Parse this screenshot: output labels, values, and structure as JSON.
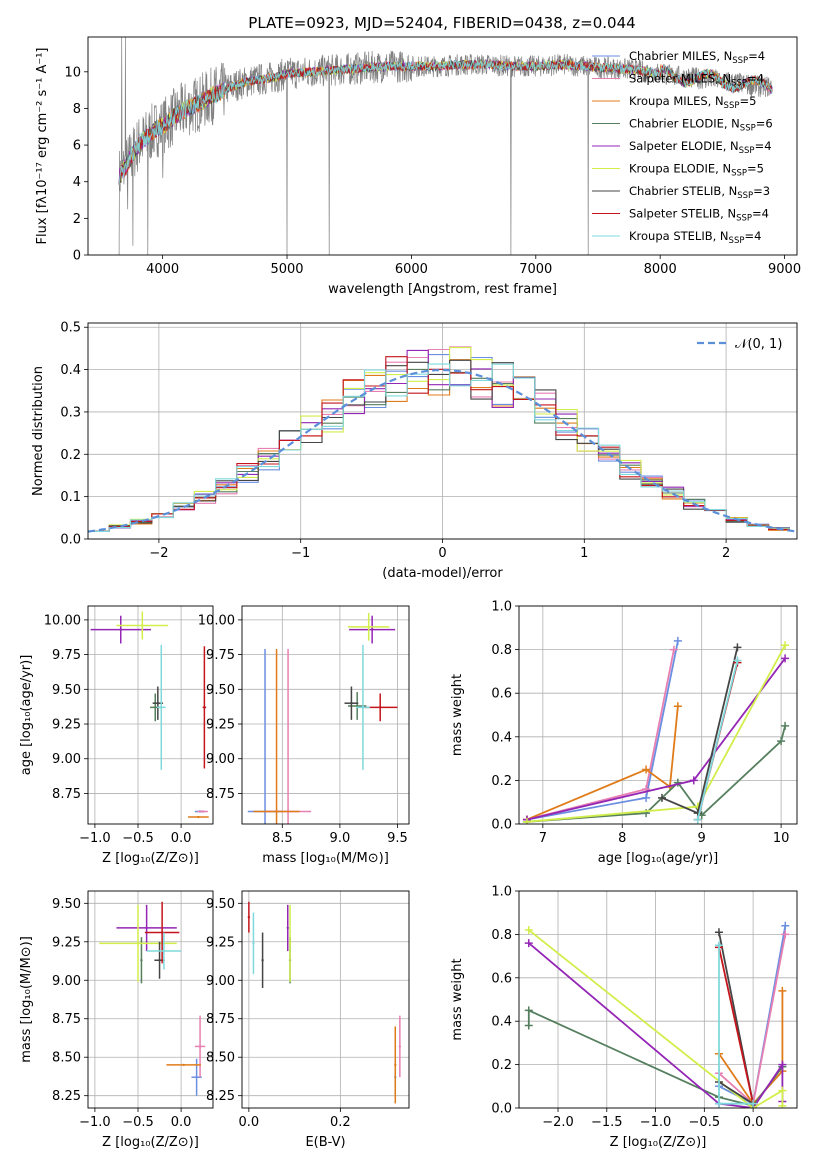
{
  "figure": {
    "title": "PLATE=0923, MJD=52404, FIBERID=0438, z=0.044"
  },
  "colors": {
    "Chabrier MILES": "#6b8fe0",
    "Salpeter MILES": "#e77fb3",
    "Kroupa MILES": "#e07b1a",
    "Chabrier ELODIE": "#557f5e",
    "Salpeter ELODIE": "#9426b5",
    "Kroupa ELODIE": "#d2ee4a",
    "Chabrier STELIB": "#454545",
    "Salpeter STELIB": "#c4151c",
    "Kroupa STELIB": "#7fd9dc",
    "data": "#808080",
    "normal": "#5b8fd9"
  },
  "chart_data": [
    {
      "id": "spectrum",
      "type": "line",
      "title": "PLATE=0923, MJD=52404, FIBERID=0438, z=0.044",
      "xlabel": "wavelength [Angstrom, rest frame]",
      "ylabel": "Flux [fλ10⁻¹⁷ erg cm⁻² s⁻¹ A⁻¹]",
      "xlim": [
        3400,
        9100
      ],
      "ylim": [
        0,
        11.9
      ],
      "xticks": [
        4000,
        5000,
        6000,
        7000,
        8000,
        9000
      ],
      "yticks": [
        0,
        2,
        4,
        6,
        8,
        10
      ],
      "legend": "upper right",
      "legend_entries": [
        {
          "label": "Chabrier MILES, N",
          "sub": "SSP",
          "tail": "=4",
          "color_key": "Chabrier MILES"
        },
        {
          "label": "Salpeter MILES, N",
          "sub": "SSP",
          "tail": "=4",
          "color_key": "Salpeter MILES"
        },
        {
          "label": "Kroupa MILES, N",
          "sub": "SSP",
          "tail": "=5",
          "color_key": "Kroupa MILES"
        },
        {
          "label": "Chabrier ELODIE, N",
          "sub": "SSP",
          "tail": "=6",
          "color_key": "Chabrier ELODIE"
        },
        {
          "label": "Salpeter ELODIE, N",
          "sub": "SSP",
          "tail": "=4",
          "color_key": "Salpeter ELODIE"
        },
        {
          "label": "Kroupa ELODIE, N",
          "sub": "SSP",
          "tail": "=5",
          "color_key": "Kroupa ELODIE"
        },
        {
          "label": "Chabrier STELIB, N",
          "sub": "SSP",
          "tail": "=3",
          "color_key": "Chabrier STELIB"
        },
        {
          "label": "Salpeter STELIB, N",
          "sub": "SSP",
          "tail": "=4",
          "color_key": "Salpeter STELIB"
        },
        {
          "label": "Kroupa STELIB, N",
          "sub": "SSP",
          "tail": "=4",
          "color_key": "Kroupa STELIB"
        }
      ],
      "continuum": [
        [
          3650,
          4.3
        ],
        [
          3700,
          4.8
        ],
        [
          3750,
          5.4
        ],
        [
          3800,
          6.0
        ],
        [
          3850,
          6.3
        ],
        [
          3900,
          6.6
        ],
        [
          3950,
          6.9
        ],
        [
          4000,
          7.0
        ],
        [
          4100,
          7.6
        ],
        [
          4200,
          8.0
        ],
        [
          4300,
          8.3
        ],
        [
          4400,
          8.7
        ],
        [
          4500,
          9.0
        ],
        [
          4600,
          9.3
        ],
        [
          4700,
          9.5
        ],
        [
          4800,
          9.6
        ],
        [
          4900,
          9.7
        ],
        [
          5000,
          9.9
        ],
        [
          5200,
          10.0
        ],
        [
          5400,
          10.1
        ],
        [
          5600,
          10.2
        ],
        [
          5800,
          10.3
        ],
        [
          6000,
          10.3
        ],
        [
          6200,
          10.3
        ],
        [
          6400,
          10.4
        ],
        [
          6600,
          10.4
        ],
        [
          6800,
          10.3
        ],
        [
          7000,
          10.3
        ],
        [
          7200,
          10.4
        ],
        [
          7400,
          10.3
        ],
        [
          7600,
          10.2
        ],
        [
          7800,
          10.1
        ],
        [
          8000,
          9.9
        ],
        [
          8200,
          9.7
        ],
        [
          8400,
          9.6
        ],
        [
          8600,
          9.4
        ],
        [
          8800,
          9.2
        ]
      ],
      "data_spikes": [
        [
          3650,
          0
        ],
        [
          3670,
          11.9
        ],
        [
          3700,
          11.9
        ],
        [
          3720,
          2.5
        ],
        [
          3760,
          0.5
        ],
        [
          3880,
          0
        ],
        [
          4000,
          4.2
        ],
        [
          5000,
          0
        ],
        [
          5340,
          0
        ],
        [
          6800,
          0
        ],
        [
          7420,
          0
        ]
      ]
    },
    {
      "id": "residuals",
      "type": "step",
      "xlabel": "(data-model)/error",
      "ylabel": "Normed distribution",
      "xlim": [
        -2.5,
        2.5
      ],
      "ylim": [
        0,
        0.51
      ],
      "xticks": [
        -2,
        -1,
        0,
        1,
        2
      ],
      "yticks": [
        0.0,
        0.1,
        0.2,
        0.3,
        0.4,
        0.5
      ],
      "legend": "upper right",
      "normal_label": "𝒩(0, 1)",
      "bins": [
        -2.5,
        -2.35,
        -2.2,
        -2.05,
        -1.9,
        -1.75,
        -1.6,
        -1.45,
        -1.3,
        -1.15,
        -1.0,
        -0.85,
        -0.7,
        -0.55,
        -0.4,
        -0.25,
        -0.1,
        0.05,
        0.2,
        0.35,
        0.5,
        0.65,
        0.8,
        0.95,
        1.1,
        1.25,
        1.4,
        1.55,
        1.7,
        1.85,
        2.0,
        2.15,
        2.3,
        2.45
      ]
    },
    {
      "id": "age_vs_Z",
      "type": "errorbar",
      "xlabel": "Z [log₁₀(Z/Z⊙)]",
      "ylabel": "age  [log₁₀(age/yr)]",
      "xlim": [
        -1.08,
        0.37
      ],
      "ylim": [
        8.53,
        10.1
      ],
      "xticks": [
        -1.0,
        -0.5,
        0.0
      ],
      "yticks": [
        8.75,
        9.0,
        9.25,
        9.5,
        9.75,
        10.0
      ],
      "points": [
        {
          "k": "Chabrier MILES",
          "x": 0.22,
          "y": 8.62,
          "xerr": 0.06,
          "yerr": 0.0
        },
        {
          "k": "Salpeter MILES",
          "x": 0.25,
          "y": 8.62,
          "xerr": 0.06,
          "yerr": 0.0
        },
        {
          "k": "Kroupa MILES",
          "x": 0.2,
          "y": 8.58,
          "xerr": 0.12,
          "yerr": 0.0
        },
        {
          "k": "Chabrier ELODIE",
          "x": -0.3,
          "y": 9.37,
          "xerr": 0.06,
          "yerr": 0.1
        },
        {
          "k": "Salpeter ELODIE",
          "x": -0.7,
          "y": 9.93,
          "xerr": 0.35,
          "yerr": 0.1
        },
        {
          "k": "Kroupa ELODIE",
          "x": -0.45,
          "y": 9.96,
          "xerr": 0.3,
          "yerr": 0.1
        },
        {
          "k": "Chabrier STELIB",
          "x": -0.27,
          "y": 9.4,
          "xerr": 0.06,
          "yerr": 0.12
        },
        {
          "k": "Salpeter STELIB",
          "x": 0.27,
          "y": 9.37,
          "xerr": 0.02,
          "yerr": 0.44
        },
        {
          "k": "Kroupa STELIB",
          "x": -0.23,
          "y": 9.37,
          "xerr": 0.05,
          "yerr": 0.45
        }
      ]
    },
    {
      "id": "age_vs_mass",
      "type": "errorbar",
      "xlabel": "mass [log₁₀(M/M⊙)]",
      "ylabel": "",
      "xlim": [
        8.15,
        9.6
      ],
      "ylim": [
        8.53,
        10.1
      ],
      "xticks": [
        8.5,
        9.0,
        9.5
      ],
      "yticks": [
        8.75,
        9.0,
        9.25,
        9.5,
        9.75,
        10.0
      ],
      "points": [
        {
          "k": "Chabrier MILES",
          "x": 8.35,
          "y": 8.62,
          "xerr": 0.15,
          "yerr": 1.17
        },
        {
          "k": "Salpeter MILES",
          "x": 8.55,
          "y": 8.62,
          "xerr": 0.2,
          "yerr": 1.17
        },
        {
          "k": "Kroupa MILES",
          "x": 8.45,
          "y": 8.62,
          "xerr": 0.2,
          "yerr": 1.17
        },
        {
          "k": "Chabrier ELODIE",
          "x": 9.15,
          "y": 9.38,
          "xerr": 0.08,
          "yerr": 0.1
        },
        {
          "k": "Salpeter ELODIE",
          "x": 9.28,
          "y": 9.93,
          "xerr": 0.2,
          "yerr": 0.1
        },
        {
          "k": "Kroupa ELODIE",
          "x": 9.25,
          "y": 9.95,
          "xerr": 0.18,
          "yerr": 0.1
        },
        {
          "k": "Chabrier STELIB",
          "x": 9.1,
          "y": 9.4,
          "xerr": 0.06,
          "yerr": 0.12
        },
        {
          "k": "Salpeter STELIB",
          "x": 9.35,
          "y": 9.37,
          "xerr": 0.15,
          "yerr": 0.1
        },
        {
          "k": "Kroupa STELIB",
          "x": 9.2,
          "y": 9.37,
          "xerr": 0.06,
          "yerr": 0.45
        }
      ]
    },
    {
      "id": "weight_vs_age",
      "type": "line",
      "xlabel": "age  [log₁₀(age/yr)]",
      "ylabel": "mass weight",
      "xlim": [
        6.7,
        10.2
      ],
      "ylim": [
        0.0,
        1.0
      ],
      "xticks": [
        7,
        8,
        9,
        10
      ],
      "yticks": [
        0.0,
        0.2,
        0.4,
        0.6,
        0.8,
        1.0
      ],
      "series": [
        {
          "k": "Chabrier MILES",
          "x": [
            6.8,
            8.3,
            8.7
          ],
          "y": [
            0.02,
            0.12,
            0.84
          ]
        },
        {
          "k": "Salpeter MILES",
          "x": [
            6.8,
            8.3,
            8.65
          ],
          "y": [
            0.02,
            0.16,
            0.8
          ]
        },
        {
          "k": "Kroupa MILES",
          "x": [
            6.8,
            8.3,
            8.6,
            8.7
          ],
          "y": [
            0.02,
            0.25,
            0.17,
            0.54
          ]
        },
        {
          "k": "Chabrier ELODIE",
          "x": [
            6.8,
            8.3,
            8.7,
            9.0,
            10.0,
            10.05
          ],
          "y": [
            0.01,
            0.05,
            0.19,
            0.04,
            0.38,
            0.45
          ]
        },
        {
          "k": "Salpeter ELODIE",
          "x": [
            6.8,
            8.9,
            10.05
          ],
          "y": [
            0.02,
            0.2,
            0.76
          ]
        },
        {
          "k": "Kroupa ELODIE",
          "x": [
            6.8,
            8.95,
            10.05
          ],
          "y": [
            0.01,
            0.08,
            0.82
          ]
        },
        {
          "k": "Chabrier STELIB",
          "x": [
            8.5,
            8.95,
            9.45
          ],
          "y": [
            0.12,
            0.05,
            0.81
          ]
        },
        {
          "k": "Salpeter STELIB",
          "x": [
            8.95,
            9.45
          ],
          "y": [
            0.02,
            0.74
          ]
        },
        {
          "k": "Kroupa STELIB",
          "x": [
            8.95,
            9.45
          ],
          "y": [
            0.02,
            0.75
          ]
        }
      ]
    },
    {
      "id": "mass_vs_Z",
      "type": "errorbar",
      "xlabel": "Z [log₁₀(Z/Z⊙)]",
      "ylabel": "mass [log₁₀(M/M⊙)]",
      "xlim": [
        -1.08,
        0.37
      ],
      "ylim": [
        8.17,
        9.58
      ],
      "xticks": [
        -1.0,
        -0.5,
        0.0
      ],
      "yticks": [
        8.25,
        8.5,
        8.75,
        9.0,
        9.25,
        9.5
      ],
      "points": [
        {
          "k": "Chabrier MILES",
          "x": 0.18,
          "y": 8.37,
          "xerr": 0.06,
          "yerr": 0.12
        },
        {
          "k": "Salpeter MILES",
          "x": 0.22,
          "y": 8.57,
          "xerr": 0.06,
          "yerr": 0.2
        },
        {
          "k": "Kroupa MILES",
          "x": 0.03,
          "y": 8.45,
          "xerr": 0.2,
          "yerr": 0.0
        },
        {
          "k": "Chabrier ELODIE",
          "x": -0.46,
          "y": 9.13,
          "xerr": 0.0,
          "yerr": 0.15
        },
        {
          "k": "Salpeter ELODIE",
          "x": -0.4,
          "y": 9.34,
          "xerr": 0.35,
          "yerr": 0.15
        },
        {
          "k": "Kroupa ELODIE",
          "x": -0.5,
          "y": 9.24,
          "xerr": 0.45,
          "yerr": 0.25
        },
        {
          "k": "Chabrier STELIB",
          "x": -0.25,
          "y": 9.13,
          "xerr": 0.06,
          "yerr": 0.12
        },
        {
          "k": "Salpeter STELIB",
          "x": -0.22,
          "y": 9.31,
          "xerr": 0.2,
          "yerr": 0.2
        },
        {
          "k": "Kroupa STELIB",
          "x": -0.2,
          "y": 9.19,
          "xerr": 0.2,
          "yerr": 0.12
        }
      ]
    },
    {
      "id": "mass_vs_EBV",
      "type": "errorbar",
      "xlabel": "E(B-V)",
      "ylabel": "",
      "xlim": [
        -0.015,
        0.35
      ],
      "ylim": [
        8.17,
        9.58
      ],
      "xticks": [
        0.0,
        0.2
      ],
      "yticks": [
        8.25,
        8.5,
        8.75,
        9.0,
        9.25,
        9.5
      ],
      "points": [
        {
          "k": "Chabrier MILES",
          "x": 0.32,
          "y": 8.37,
          "xerr": 0.0,
          "yerr": 0.12
        },
        {
          "k": "Salpeter MILES",
          "x": 0.33,
          "y": 8.57,
          "xerr": 0.0,
          "yerr": 0.2
        },
        {
          "k": "Kroupa MILES",
          "x": 0.32,
          "y": 8.45,
          "xerr": 0.0,
          "yerr": 0.25
        },
        {
          "k": "Chabrier ELODIE",
          "x": 0.09,
          "y": 9.13,
          "xerr": 0.0,
          "yerr": 0.15
        },
        {
          "k": "Salpeter ELODIE",
          "x": 0.085,
          "y": 9.34,
          "xerr": 0.0,
          "yerr": 0.15
        },
        {
          "k": "Kroupa ELODIE",
          "x": 0.09,
          "y": 9.24,
          "xerr": 0.0,
          "yerr": 0.25
        },
        {
          "k": "Chabrier STELIB",
          "x": 0.03,
          "y": 9.13,
          "xerr": 0.0,
          "yerr": 0.18
        },
        {
          "k": "Salpeter STELIB",
          "x": 0.0,
          "y": 9.41,
          "xerr": 0.0,
          "yerr": 0.1
        },
        {
          "k": "Kroupa STELIB",
          "x": 0.01,
          "y": 9.24,
          "xerr": 0.0,
          "yerr": 0.2
        }
      ]
    },
    {
      "id": "weight_vs_Z",
      "type": "line",
      "xlabel": "Z [log₁₀(Z/Z⊙)]",
      "ylabel": "mass weight",
      "xlim": [
        -2.4,
        0.45
      ],
      "ylim": [
        0.0,
        1.0
      ],
      "xticks": [
        -2.0,
        -1.5,
        -1.0,
        -0.5,
        0.0
      ],
      "yticks": [
        0.0,
        0.2,
        0.4,
        0.6,
        0.8,
        1.0
      ],
      "series": [
        {
          "k": "Chabrier MILES",
          "x": [
            -0.35,
            0.0,
            0.33
          ],
          "y": [
            0.1,
            0.02,
            0.84
          ]
        },
        {
          "k": "Salpeter MILES",
          "x": [
            -0.35,
            0.0,
            0.33
          ],
          "y": [
            0.16,
            0.02,
            0.8
          ]
        },
        {
          "k": "Kroupa MILES",
          "x": [
            -0.35,
            0.0,
            0.3,
            0.3
          ],
          "y": [
            0.25,
            0.02,
            0.17,
            0.54
          ]
        },
        {
          "k": "Chabrier ELODIE",
          "x": [
            -2.3,
            -2.3,
            -0.35,
            0.0,
            0.3
          ],
          "y": [
            0.38,
            0.45,
            0.05,
            0.01,
            0.19
          ]
        },
        {
          "k": "Salpeter ELODIE",
          "x": [
            -2.3,
            -0.35,
            0.0,
            0.3,
            0.3
          ],
          "y": [
            0.76,
            0.02,
            0.0,
            0.2,
            0.03
          ]
        },
        {
          "k": "Kroupa ELODIE",
          "x": [
            -2.3,
            0.0,
            0.3,
            0.3
          ],
          "y": [
            0.82,
            0.0,
            0.08,
            0.01
          ]
        },
        {
          "k": "Chabrier STELIB",
          "x": [
            -0.35,
            0.0,
            -0.35
          ],
          "y": [
            0.81,
            0.02,
            0.12
          ]
        },
        {
          "k": "Salpeter STELIB",
          "x": [
            -0.35,
            0.0
          ],
          "y": [
            0.74,
            0.02
          ]
        },
        {
          "k": "Kroupa STELIB",
          "x": [
            -0.35,
            -0.35,
            0.0
          ],
          "y": [
            0.75,
            0.02,
            0.02
          ]
        }
      ]
    }
  ]
}
